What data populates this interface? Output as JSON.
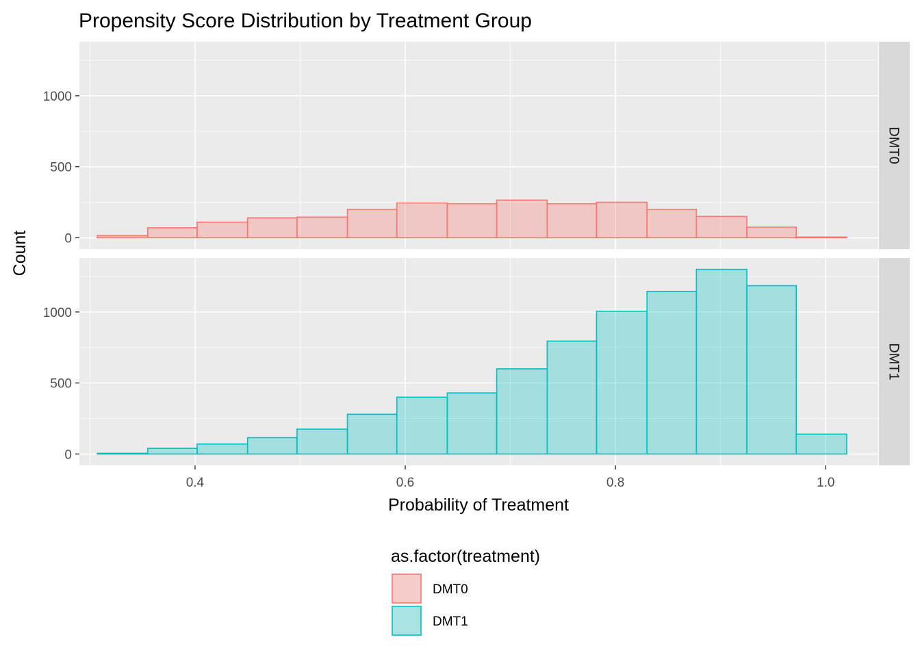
{
  "chart_data": {
    "type": "bar",
    "subtype": "faceted histogram",
    "title": "Propensity Score Distribution by Treatment Group",
    "xlabel": "Probability of Treatment",
    "ylabel": "Count",
    "xlim": [
      0.29,
      1.05
    ],
    "ylim": [
      -80,
      1380
    ],
    "x_ticks": [
      0.4,
      0.6,
      0.8,
      1.0
    ],
    "x_tick_labels": [
      "0.4",
      "0.6",
      "0.8",
      "1.0"
    ],
    "y_ticks": [
      0,
      500,
      1000
    ],
    "y_tick_labels": [
      "0",
      "500",
      "1000"
    ],
    "grid": true,
    "legend_position": "bottom",
    "bin_edges": [
      0.307,
      0.355,
      0.402,
      0.45,
      0.497,
      0.545,
      0.592,
      0.64,
      0.687,
      0.735,
      0.782,
      0.83,
      0.877,
      0.925,
      0.972,
      1.02
    ],
    "series": [
      {
        "name": "DMT0",
        "facet_label": "DMT0",
        "line_color": "#F8766D",
        "fill_color": "#F8766D",
        "counts": [
          15,
          70,
          110,
          140,
          145,
          200,
          245,
          240,
          265,
          240,
          250,
          200,
          150,
          75,
          5
        ]
      },
      {
        "name": "DMT1",
        "facet_label": "DMT1",
        "line_color": "#00BFC4",
        "fill_color": "#00BFC4",
        "counts": [
          5,
          40,
          70,
          115,
          175,
          280,
          400,
          430,
          600,
          795,
          1005,
          1145,
          1300,
          1185,
          140
        ]
      }
    ],
    "legend": {
      "title": "as.factor(treatment)",
      "entries": [
        "DMT0",
        "DMT1"
      ]
    }
  }
}
